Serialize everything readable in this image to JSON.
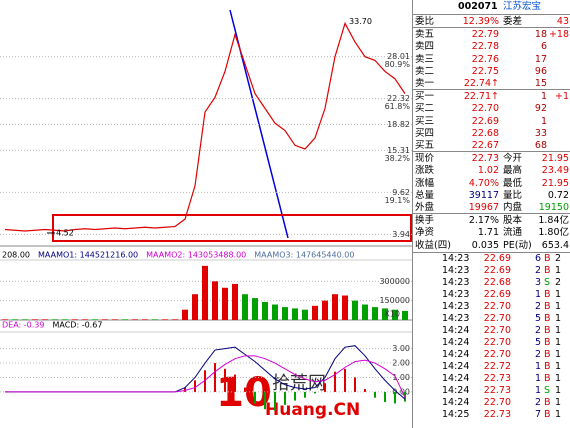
{
  "chart_data": [
    {
      "type": "line",
      "ylim": [
        2.5,
        35
      ],
      "yticks": [
        28.01,
        22.32,
        18.82,
        15.31,
        9.62,
        3.94
      ],
      "ratio_labels": [
        "80.9%",
        "61.8%",
        "38.2%",
        "19.1%"
      ],
      "high_label": "33.70",
      "low_label": "4.52",
      "color": "#e00000",
      "values": [
        4.6,
        4.5,
        4.4,
        4.5,
        4.6,
        4.5,
        4.4,
        4.6,
        4.7,
        4.6,
        4.7,
        4.8,
        4.7,
        4.8,
        4.9,
        4.8,
        4.9,
        5.0,
        6.0,
        10.5,
        20.5,
        22.5,
        26,
        31,
        27,
        23,
        21,
        19,
        18,
        16,
        15.5,
        17,
        21,
        28,
        32.5,
        30,
        28,
        27.5,
        26,
        25,
        23
      ]
    },
    {
      "type": "bar",
      "header": [
        {
          "text": "208.00",
          "color": "#000000"
        },
        {
          "text": "MAAMO1: 144521216.00",
          "color": "#000080"
        },
        {
          "text": "MAAMO2: 143053488.00",
          "color": "#d000d0"
        },
        {
          "text": "MAAMO3: 147645440.00",
          "color": "#5070a0"
        }
      ],
      "ylim": [
        0,
        450000
      ],
      "yticks": [
        150000,
        300000
      ],
      "unit_label": "X10",
      "color": "#e00000",
      "down_color": "#00a000",
      "values": [
        5000,
        5000,
        5000,
        5000,
        5000,
        5000,
        5000,
        5000,
        5000,
        5000,
        5000,
        5000,
        5000,
        5000,
        5000,
        5000,
        5000,
        5000,
        80000,
        200000,
        420000,
        300000,
        250000,
        280000,
        200000,
        170000,
        140000,
        120000,
        100000,
        90000,
        80000,
        110000,
        150000,
        200000,
        190000,
        150000,
        120000,
        100000,
        90000,
        80000,
        70000
      ]
    },
    {
      "type": "bar",
      "header": [
        {
          "text": "DEA: -0.39",
          "color": "#d000d0"
        },
        {
          "text": "MACD: -0.67",
          "color": "#000000"
        }
      ],
      "ylim": [
        -2.5,
        4.15
      ],
      "yticks": [
        {
          "value": 3,
          "label": "3.00"
        },
        {
          "value": 2,
          "label": "2.00"
        },
        {
          "value": 1,
          "label": "1.00"
        },
        {
          "value": 0,
          "label": "0.00"
        }
      ],
      "color": "#e00000",
      "down_color": "#00a000",
      "values": [
        0,
        0,
        0,
        0,
        0,
        0,
        0,
        0,
        0,
        0,
        0,
        0,
        0,
        0,
        0,
        0,
        0,
        0,
        0.3,
        0.8,
        1.5,
        2.0,
        1.6,
        1.2,
        0.3,
        -0.8,
        -1.2,
        -1.3,
        -0.9,
        -0.6,
        -0.4,
        -0.1,
        0.6,
        1.4,
        1.6,
        1.0,
        0.2,
        -0.4,
        -0.7,
        -0.8,
        -0.67
      ],
      "lines": [
        {
          "color": "#000080",
          "values": [
            0,
            0,
            0,
            0,
            0,
            0,
            0,
            0,
            0,
            0,
            0,
            0,
            0,
            0,
            0,
            0,
            0,
            0,
            0.3,
            1.0,
            2.0,
            2.9,
            3.0,
            3.1,
            2.6,
            2.1,
            1.5,
            0.9,
            0.5,
            0.3,
            0.2,
            0.3,
            1.0,
            2.3,
            3.1,
            3.2,
            2.5,
            1.6,
            0.8,
            0.1,
            -0.5
          ]
        },
        {
          "color": "#d000d0",
          "values": [
            0,
            0,
            0,
            0,
            0,
            0,
            0,
            0,
            0,
            0,
            0,
            0,
            0,
            0,
            0,
            0,
            0,
            0,
            0.1,
            0.3,
            0.8,
            1.4,
            1.9,
            2.3,
            2.5,
            2.5,
            2.3,
            2.0,
            1.6,
            1.2,
            0.9,
            0.7,
            0.8,
            1.2,
            1.7,
            2.1,
            2.2,
            2.0,
            1.6,
            1.1,
            -0.39
          ]
        }
      ]
    }
  ],
  "quote": {
    "code": "002071",
    "name": "江苏宏宝",
    "rows": [
      [
        "委比",
        "12.39%",
        "委差",
        "43"
      ],
      [
        "卖五",
        "22.79",
        "18",
        "+18"
      ],
      [
        "卖四",
        "22.78",
        "6"
      ],
      [
        "卖三",
        "22.76",
        "17"
      ],
      [
        "卖二",
        "22.75",
        "96"
      ],
      [
        "卖一",
        "22.74↑",
        "15"
      ],
      [
        "买一",
        "22.71↑",
        "1",
        "+1"
      ],
      [
        "买二",
        "22.70",
        "92"
      ],
      [
        "买三",
        "22.69",
        "1"
      ],
      [
        "买四",
        "22.68",
        "33"
      ],
      [
        "买五",
        "22.67",
        "68"
      ],
      [
        "现价",
        "22.73",
        "今开",
        "21.95"
      ],
      [
        "涨跌",
        "1.02",
        "最高",
        "23.49"
      ],
      [
        "涨幅",
        "4.70%",
        "最低",
        "21.95"
      ],
      [
        "总量",
        "39117",
        "量比",
        "0.72"
      ],
      [
        "外盘",
        "19967",
        "内盘",
        "19150"
      ],
      [
        "换手",
        "2.17%",
        "股本",
        "1.84亿"
      ],
      [
        "净资",
        "1.71",
        "流通",
        "1.80亿"
      ],
      [
        "收益(四)",
        "0.035",
        "PE(动)",
        "653.4"
      ]
    ],
    "trades": [
      [
        "14:23",
        "22.69",
        "6",
        "B",
        "2"
      ],
      [
        "14:23",
        "22.69",
        "2",
        "B",
        "1"
      ],
      [
        "14:23",
        "22.68",
        "3",
        "S",
        "2"
      ],
      [
        "14:23",
        "22.69",
        "1",
        "B",
        "1"
      ],
      [
        "14:23",
        "22.70",
        "2",
        "B",
        "1"
      ],
      [
        "14:23",
        "22.70",
        "5",
        "B",
        "1"
      ],
      [
        "14:24",
        "22.70",
        "2",
        "B",
        "1"
      ],
      [
        "14:24",
        "22.70",
        "5",
        "B",
        "1"
      ],
      [
        "14:24",
        "22.70",
        "2",
        "B",
        "1"
      ],
      [
        "14:24",
        "22.72",
        "1",
        "B",
        "1"
      ],
      [
        "14:24",
        "22.73",
        "1",
        "B",
        "1"
      ],
      [
        "14:24",
        "22.73",
        "1",
        "S",
        "1"
      ],
      [
        "14:24",
        "22.70",
        "2",
        "B",
        "1"
      ],
      [
        "14:25",
        "22.73",
        "7",
        "B",
        "1"
      ]
    ]
  },
  "watermark": {
    "number": "10",
    "cn": "拾荒网",
    "en": "Huang.CN"
  }
}
